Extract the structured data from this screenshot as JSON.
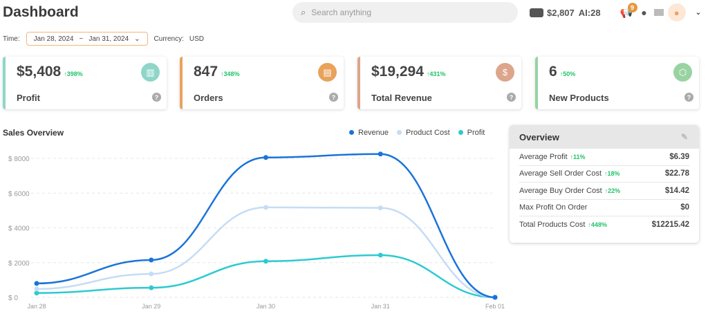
{
  "header": {
    "title": "Dashboard",
    "search_placeholder": "Search anything",
    "balance": "$2,807",
    "ai": "AI:28",
    "notifications": "9"
  },
  "filters": {
    "time_label": "Time:",
    "start": "Jan 28, 2024",
    "sep": "~",
    "end": "Jan 31, 2024",
    "currency_label": "Currency:",
    "currency": "USD"
  },
  "cards": [
    {
      "value": "$5,408",
      "change": "↑398%",
      "label": "Profit",
      "color": "#8fd6c9",
      "icon": "bar-chart-icon"
    },
    {
      "value": "847",
      "change": "↑348%",
      "label": "Orders",
      "color": "#e8a25c",
      "icon": "clipboard-icon"
    },
    {
      "value": "$19,294",
      "change": "↑431%",
      "label": "Total Revenue",
      "color": "#dca58c",
      "icon": "dollar-icon"
    },
    {
      "value": "6",
      "change": "↑50%",
      "label": "New Products",
      "color": "#98d3a1",
      "icon": "box-icon"
    }
  ],
  "sales": {
    "title": "Sales Overview"
  },
  "overview": {
    "title": "Overview",
    "rows": [
      {
        "label": "Average Profit",
        "change": "↑11%",
        "value": "$6.39"
      },
      {
        "label": "Average Sell Order Cost",
        "change": "↑18%",
        "value": "$22.78"
      },
      {
        "label": "Average Buy Order Cost",
        "change": "↑22%",
        "value": "$14.42"
      },
      {
        "label": "Max Profit On Order",
        "change": "",
        "value": "$0"
      },
      {
        "label": "Total Products Cost",
        "change": "↑448%",
        "value": "$12215.42"
      }
    ]
  },
  "chart_data": {
    "type": "line",
    "categories": [
      "Jan 28",
      "Jan 29",
      "Jan 30",
      "Jan 31",
      "Feb 01"
    ],
    "yticks": [
      "$ 0",
      "$ 2000",
      "$ 4000",
      "$ 6000",
      "$ 8000"
    ],
    "ylim": [
      0,
      8000
    ],
    "grid": true,
    "legend": "top-right",
    "series": [
      {
        "name": "Revenue",
        "color": "#1a73d9",
        "values": [
          800,
          2150,
          8050,
          8250,
          0
        ]
      },
      {
        "name": "Product Cost",
        "color": "#c5dcf5",
        "values": [
          480,
          1350,
          5180,
          5150,
          0
        ]
      },
      {
        "name": "Profit",
        "color": "#2ccad0",
        "values": [
          250,
          550,
          2080,
          2430,
          0
        ]
      }
    ]
  }
}
